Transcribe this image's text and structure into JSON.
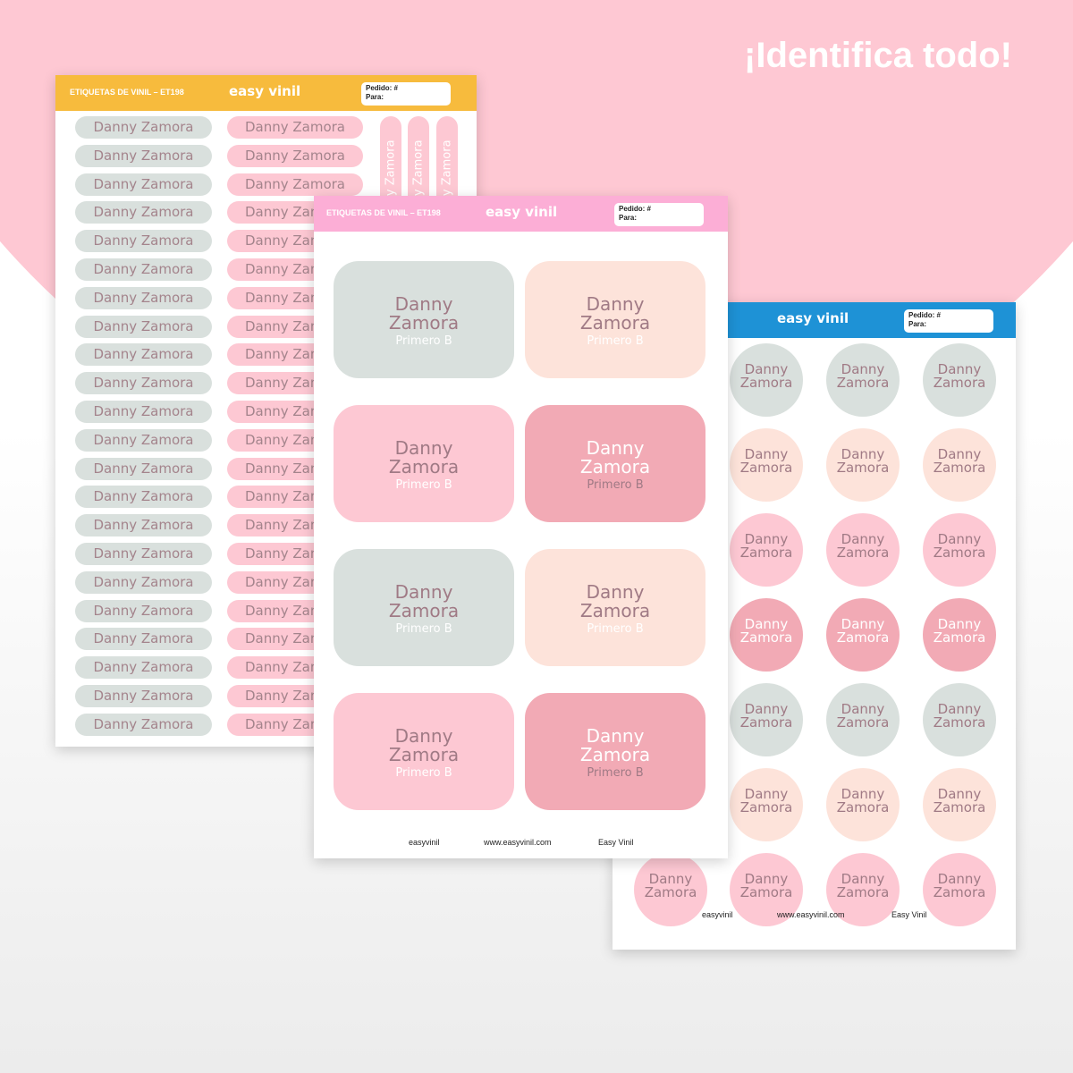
{
  "headline": "¡Identifica todo!",
  "sheet_title": "ETIQUETAS DE VINIL – ET198",
  "brand": "easy vinil",
  "order": "Pedido: #",
  "to": "Para:",
  "name": "Danny Zamora",
  "first_name": "Danny",
  "last_name": "Zamora",
  "grade": "Primero B",
  "footer": {
    "instagram": "easyvinil",
    "web": "www.easyvinil.com",
    "facebook": "Easy Vinil"
  }
}
